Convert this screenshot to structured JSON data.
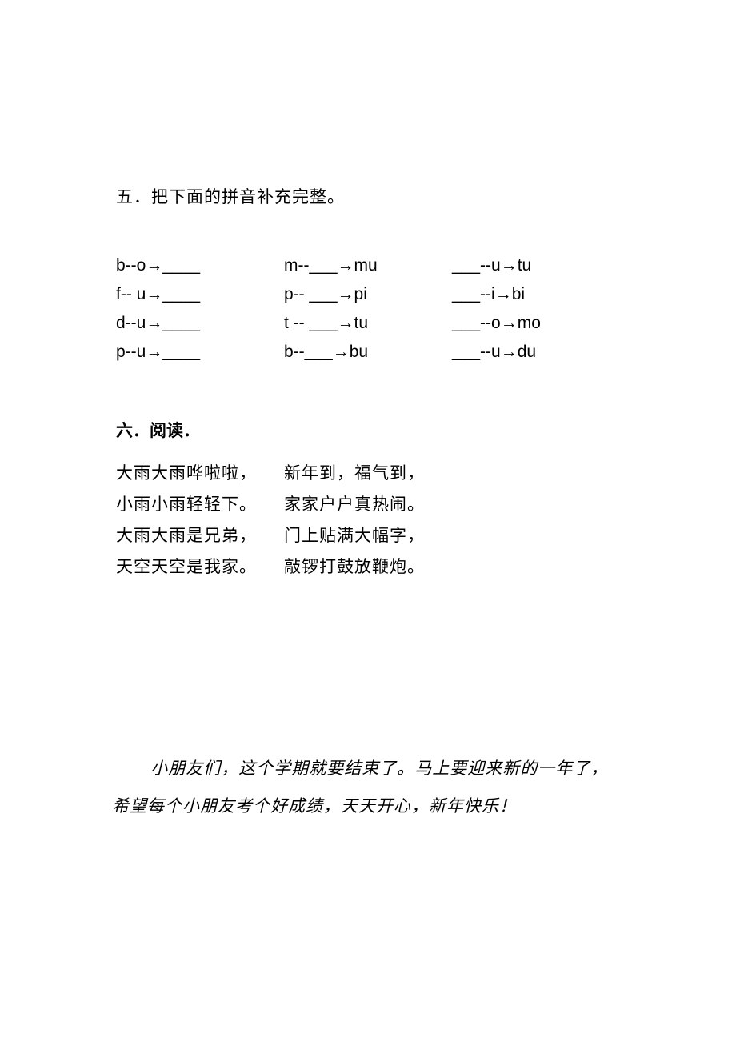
{
  "section5": {
    "heading": "五．把下面的拼音补充完整。",
    "rows": [
      {
        "c1": "b--o→____",
        "c2": "m--___→mu",
        "c3": "___--u→tu"
      },
      {
        "c1": "f-- u→____",
        "c2": "p-- ___→pi",
        "c3": "___--i→bi"
      },
      {
        "c1": "d--u→____",
        "c2": "t -- ___→tu",
        "c3": "___--o→mo"
      },
      {
        "c1": "p--u→____",
        "c2": "b--___→bu",
        "c3": "___--u→du"
      }
    ]
  },
  "section6": {
    "heading": "六．阅读．",
    "poem_left": [
      "大雨大雨哗啦啦，",
      "小雨小雨轻轻下。",
      "大雨大雨是兄弟，",
      "天空天空是我家。"
    ],
    "poem_right": [
      "新年到，福气到，",
      "家家户户真热闹。",
      "门上贴满大幅字，",
      "敲锣打鼓放鞭炮。"
    ]
  },
  "closing": {
    "text": "小朋友们，这个学期就要结束了。马上要迎来新的一年了，希望每个小朋友考个好成绩，天天开心，新年快乐！"
  },
  "colors": {
    "background": "#ffffff",
    "text": "#000000"
  },
  "typography": {
    "body_fontsize": 21,
    "heading_fontsize": 21,
    "pinyin_font": "Arial",
    "cjk_font": "SimSun"
  }
}
